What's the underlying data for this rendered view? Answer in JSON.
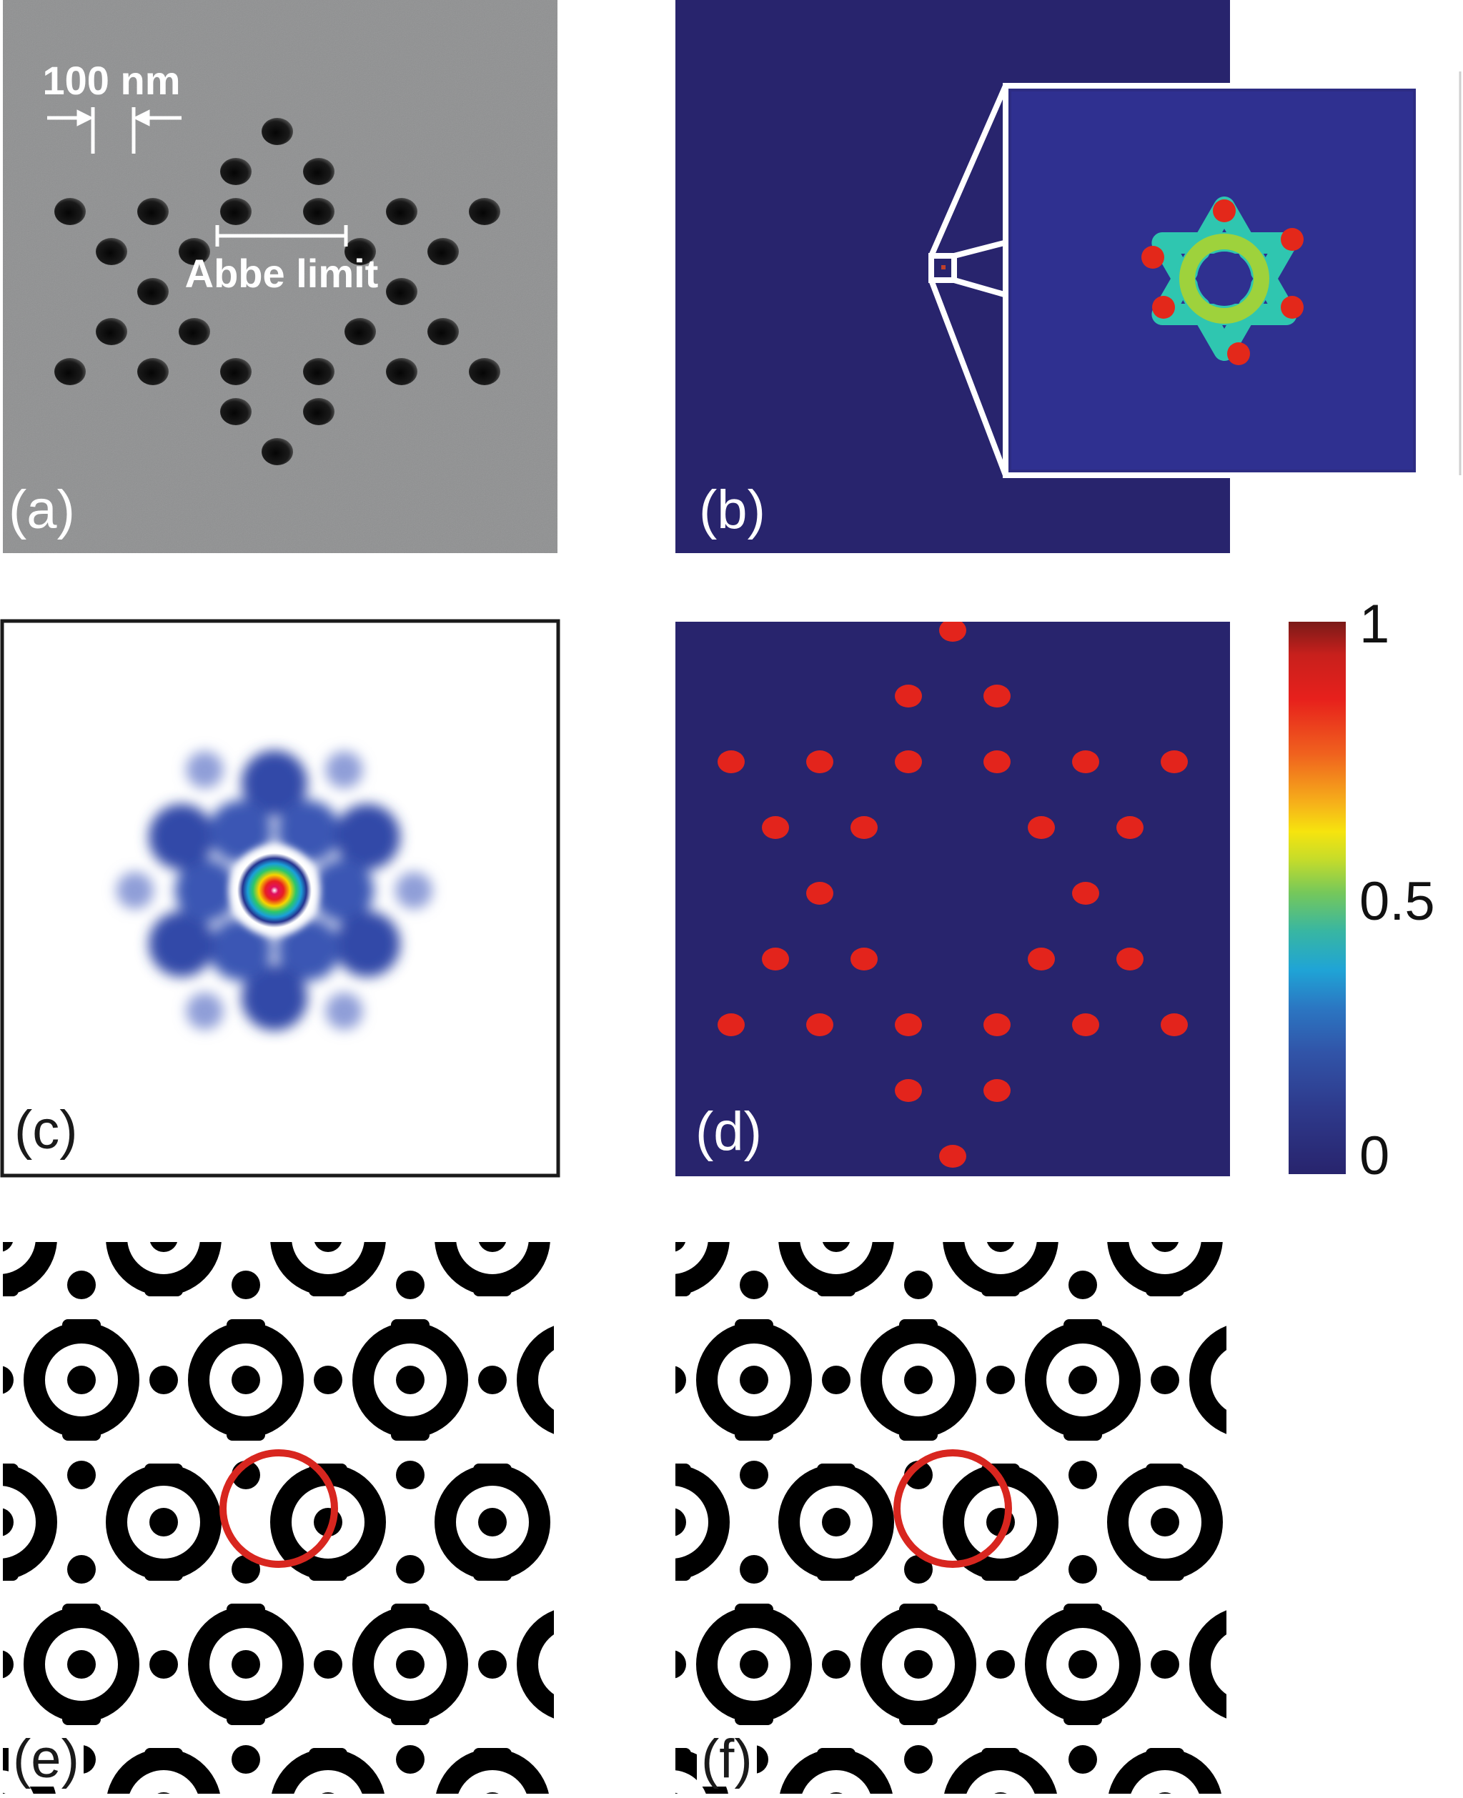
{
  "panels": {
    "a": {
      "label": "(a)",
      "annotations": {
        "scale": "100 nm",
        "abbe": "Abbe limit"
      }
    },
    "b": {
      "label": "(b)"
    },
    "c": {
      "label": "(c)"
    },
    "d": {
      "label": "(d)"
    },
    "e": {
      "label": "(e)"
    },
    "f": {
      "label": "(f)"
    }
  },
  "colorbar": {
    "ticks": [
      "1",
      "0.5",
      "0"
    ],
    "values": [
      1,
      0.5,
      0
    ]
  },
  "colors": {
    "sem_bg": "#8f9091",
    "field_bg": "#28246d",
    "hole_red": "#e3241c",
    "ring_red": "#d8261f",
    "frame": "#1a1a1a"
  }
}
